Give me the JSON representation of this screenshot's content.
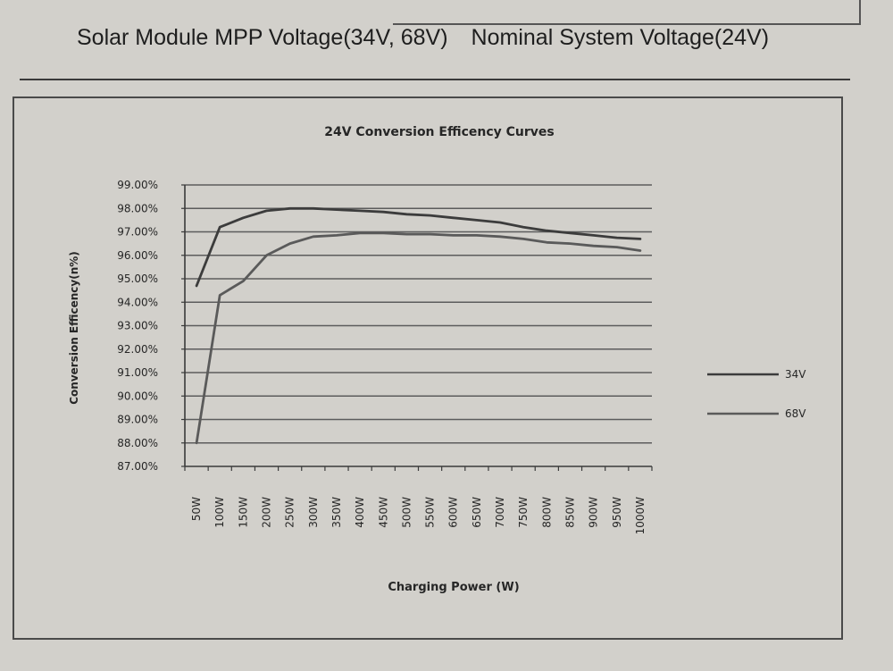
{
  "heading": {
    "part1": "Solar Module MPP Voltage(34V, 68V)",
    "part2": "Nominal System Voltage(24V)"
  },
  "chart_data": {
    "type": "line",
    "title": "24V Conversion Efficency Curves",
    "xlabel": "Charging Power (W)",
    "ylabel": "Conversion Efficency(n%)",
    "categories": [
      "50W",
      "100W",
      "150W",
      "200W",
      "250W",
      "300W",
      "350W",
      "400W",
      "450W",
      "500W",
      "550W",
      "600W",
      "650W",
      "700W",
      "750W",
      "800W",
      "850W",
      "900W",
      "950W",
      "1000W"
    ],
    "y_ticks": [
      "99.00%",
      "98.00%",
      "97.00%",
      "96.00%",
      "95.00%",
      "94.00%",
      "93.00%",
      "92.00%",
      "91.00%",
      "90.00%",
      "89.00%",
      "88.00%",
      "87.00%"
    ],
    "ylim": [
      87,
      99
    ],
    "grid": true,
    "legend_position": "right",
    "series": [
      {
        "name": "34V",
        "color": "#3c3c3c",
        "values": [
          94.7,
          97.2,
          97.6,
          97.9,
          98.0,
          98.0,
          97.95,
          97.9,
          97.85,
          97.75,
          97.7,
          97.6,
          97.5,
          97.4,
          97.2,
          97.05,
          96.95,
          96.85,
          96.75,
          96.7
        ]
      },
      {
        "name": "68V",
        "color": "#5a5a5a",
        "values": [
          88.0,
          94.3,
          94.9,
          96.0,
          96.5,
          96.8,
          96.85,
          96.95,
          96.95,
          96.9,
          96.9,
          96.85,
          96.85,
          96.8,
          96.7,
          96.55,
          96.5,
          96.4,
          96.35,
          96.2
        ]
      }
    ]
  }
}
